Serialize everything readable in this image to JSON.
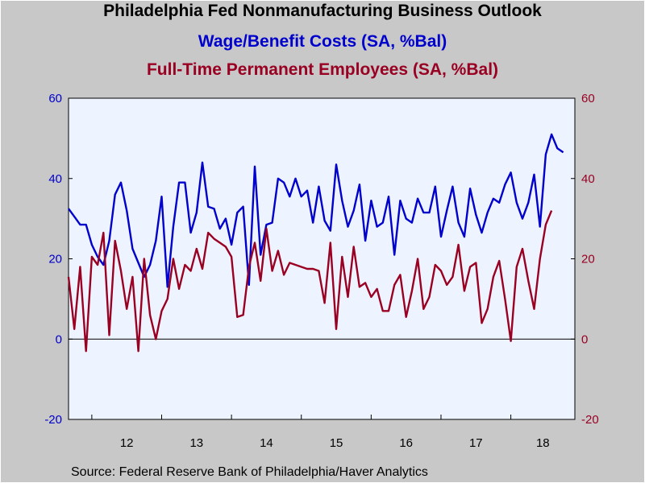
{
  "chart_data": {
    "type": "line",
    "title": "Philadelphia Fed Nonmanufacturing Business Outlook",
    "subtitle_1": "Wage/Benefit Costs (SA, %Bal)",
    "subtitle_2": "Full-Time Permanent Employees (SA, %Bal)",
    "source": "Source:  Federal Reserve Bank of Philadelphia/Haver Analytics",
    "x_tick_labels": [
      "12",
      "13",
      "14",
      "15",
      "16",
      "17",
      "18"
    ],
    "y_left_ticks": [
      "60",
      "40",
      "20",
      "0",
      "-20"
    ],
    "y_right_ticks": [
      "60",
      "40",
      "20",
      "0",
      "-20"
    ],
    "ylim": [
      -20,
      60
    ],
    "x_range_months": [
      0,
      87
    ],
    "grid": false,
    "zero_line": true,
    "series": [
      {
        "name": "Wage/Benefit Costs (SA, %Bal)",
        "color": "#0000cc",
        "values": [
          32.5,
          30.5,
          28.5,
          28.5,
          23.5,
          20.5,
          18.5,
          24.5,
          36.0,
          39.0,
          32.0,
          22.5,
          19.0,
          15.5,
          18.5,
          24.5,
          35.5,
          13.0,
          28.0,
          39.0,
          39.0,
          26.5,
          31.5,
          44.0,
          33.0,
          32.5,
          27.5,
          30.0,
          23.5,
          31.5,
          33.0,
          13.5,
          43.0,
          21.0,
          28.5,
          29.0,
          40.0,
          39.0,
          35.5,
          40.0,
          35.5,
          37.0,
          29.0,
          38.0,
          29.5,
          27.0,
          43.5,
          34.5,
          28.0,
          32.0,
          38.5,
          24.5,
          34.5,
          28.0,
          29.0,
          35.5,
          21.0,
          34.5,
          30.0,
          29.0,
          35.0,
          31.5,
          31.5,
          38.0,
          25.5,
          32.0,
          38.0,
          29.0,
          25.5,
          37.5,
          31.0,
          26.5,
          31.5,
          35.0,
          34.0,
          38.5,
          41.5,
          34.0,
          30.0,
          34.0,
          41.0,
          28.0,
          46.0,
          51.0,
          47.5,
          46.5
        ]
      },
      {
        "name": "Full-Time Permanent Employees (SA, %Bal)",
        "color": "#990022",
        "values": [
          15.5,
          2.5,
          18.0,
          -3.0,
          20.5,
          18.5,
          26.5,
          1.0,
          24.5,
          17.0,
          7.5,
          15.5,
          -3.0,
          20.0,
          6.0,
          0.0,
          7.0,
          10.0,
          20.0,
          12.5,
          18.5,
          17.0,
          22.5,
          17.5,
          26.5,
          25.0,
          24.0,
          23.0,
          20.5,
          5.5,
          6.0,
          18.0,
          24.0,
          14.5,
          27.5,
          17.0,
          22.0,
          16.0,
          19.0,
          18.5,
          18.0,
          17.5,
          17.5,
          17.0,
          9.0,
          24.0,
          2.5,
          20.5,
          10.5,
          23.0,
          13.0,
          14.0,
          10.5,
          12.5,
          7.0,
          7.0,
          13.5,
          16.0,
          5.5,
          12.0,
          20.0,
          7.5,
          10.5,
          18.5,
          17.0,
          13.5,
          15.5,
          23.5,
          12.0,
          18.0,
          19.0,
          4.0,
          7.5,
          15.5,
          19.5,
          10.0,
          -0.5,
          18.0,
          22.5,
          14.5,
          7.5,
          20.0,
          28.5,
          32.0
        ]
      }
    ]
  }
}
